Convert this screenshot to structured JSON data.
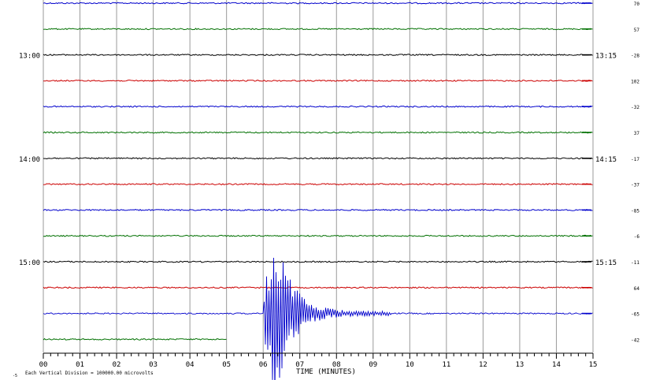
{
  "chart_data": {
    "type": "line",
    "title": "",
    "xlabel": "TIME (MINUTES)",
    "ylabel": "",
    "x_ticks": [
      "00",
      "01",
      "02",
      "03",
      "04",
      "05",
      "06",
      "07",
      "08",
      "09",
      "10",
      "11",
      "12",
      "13",
      "14",
      "15"
    ],
    "xlim": [
      0,
      15
    ],
    "left_time_labels": [
      "13:00",
      "14:00",
      "15:00"
    ],
    "right_time_labels": [
      "13:15",
      "14:15",
      "15:15"
    ],
    "right_trace_values": [
      "70",
      "57",
      "-28",
      "102",
      "-32",
      "37",
      "-17",
      "-37",
      "-85",
      "-6",
      "-11",
      "64",
      "-65",
      "-42"
    ],
    "scale_note": "Each Vertical Division = 100000.00 microvolts",
    "corner_mark": "-5",
    "grid": true,
    "trace_color_cycle": [
      "#0000cc",
      "#007000",
      "#000000",
      "#cc0000"
    ],
    "series": [
      {
        "value_label": "70",
        "end_minute": 15,
        "color": "#0000cc"
      },
      {
        "value_label": "57",
        "end_minute": 15,
        "color": "#007000"
      },
      {
        "value_label": "-28",
        "end_minute": 15,
        "color": "#000000"
      },
      {
        "value_label": "102",
        "end_minute": 15,
        "color": "#cc0000"
      },
      {
        "value_label": "-32",
        "end_minute": 15,
        "color": "#0000cc"
      },
      {
        "value_label": "37",
        "end_minute": 15,
        "color": "#007000"
      },
      {
        "value_label": "-17",
        "end_minute": 15,
        "color": "#000000"
      },
      {
        "value_label": "-37",
        "end_minute": 15,
        "color": "#cc0000"
      },
      {
        "value_label": "-85",
        "end_minute": 15,
        "color": "#0000cc"
      },
      {
        "value_label": "-6",
        "end_minute": 15,
        "color": "#007000"
      },
      {
        "value_label": "-11",
        "end_minute": 15,
        "color": "#000000"
      },
      {
        "value_label": "64",
        "end_minute": 15,
        "color": "#cc0000"
      },
      {
        "value_label": "-65",
        "end_minute": 15,
        "color": "#0000cc",
        "events": [
          {
            "start_minute": 6.0,
            "peak_minute": 6.3,
            "end_minute": 9.5,
            "description": "earthquake signal"
          }
        ]
      },
      {
        "value_label": "-42",
        "end_minute": 5.0,
        "color": "#007000"
      }
    ]
  }
}
